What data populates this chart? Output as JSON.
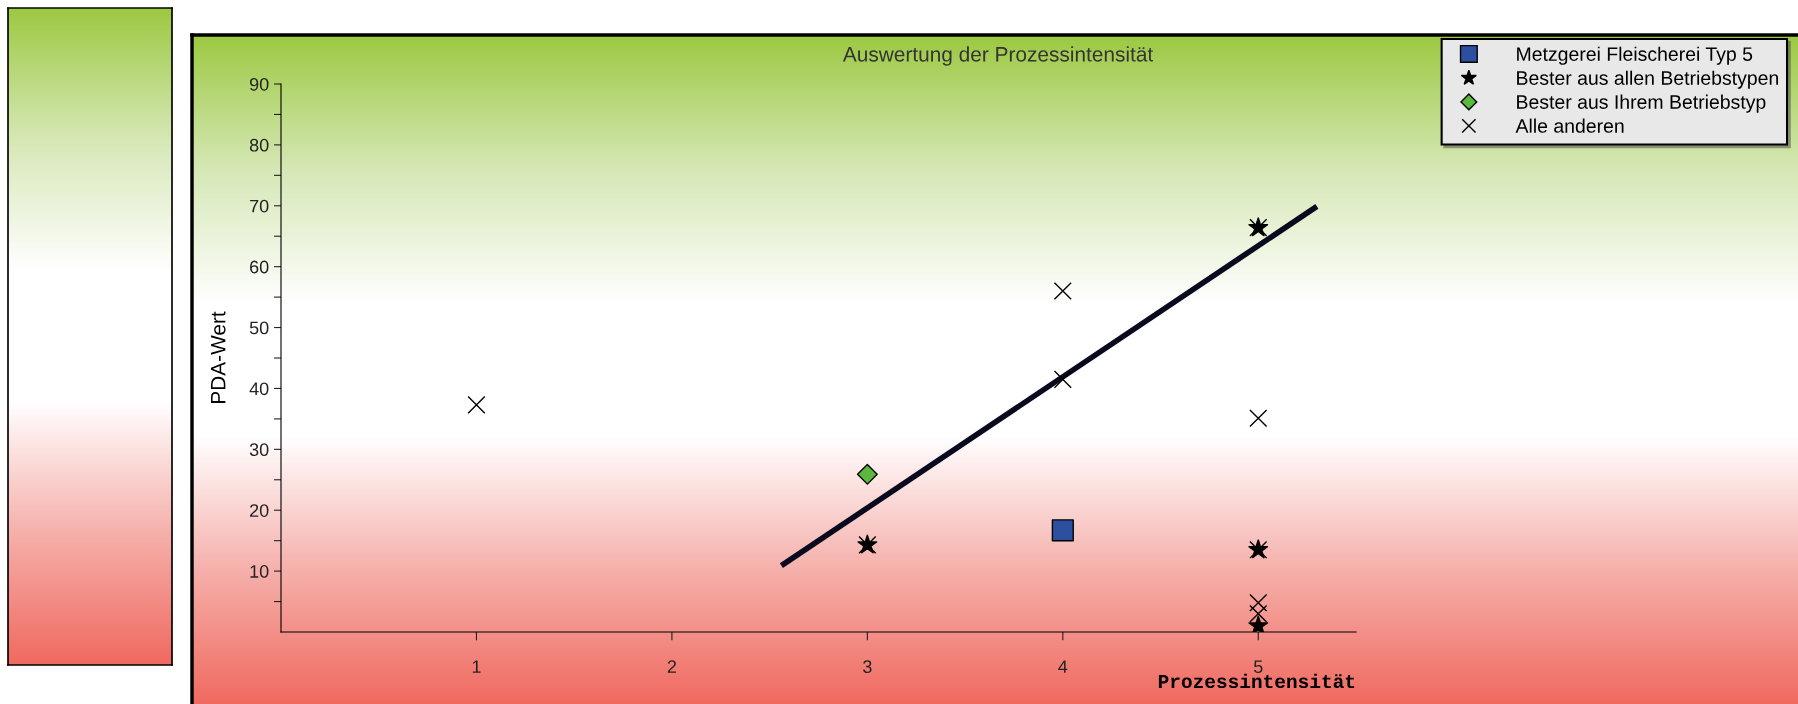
{
  "chart_data": {
    "type": "scatter",
    "title": "Auswertung der Prozessintensität",
    "xlabel": "Prozessintensität",
    "ylabel": "PDA-Wert",
    "xlim": [
      0,
      5.5
    ],
    "xticks": [
      1,
      2,
      3,
      4,
      5
    ],
    "ylim": [
      0,
      90
    ],
    "yticks": [
      {
        "value": 5,
        "label": null
      },
      10,
      {
        "value": 15,
        "label": null
      },
      20,
      {
        "value": 25,
        "label": null
      },
      30,
      {
        "value": 35,
        "label": null
      },
      40,
      {
        "value": 45,
        "label": null
      },
      50,
      {
        "value": 55,
        "label": null
      },
      60,
      {
        "value": 65,
        "label": null
      },
      70,
      {
        "value": 75,
        "label": null
      },
      80,
      {
        "value": 85,
        "label": null
      },
      90
    ],
    "grid": false,
    "legend": "top right",
    "series": [
      {
        "name": "Metzgerei Fleischerei Typ 5",
        "type": "scatter",
        "marker": "square",
        "color": "#2d4fa0",
        "x": [
          4
        ],
        "values": [
          16.7
        ]
      },
      {
        "name": "Bester aus allen Betriebstypen",
        "type": "scatter",
        "marker": "star",
        "color": "#000000",
        "x": [
          5,
          3,
          5,
          5
        ],
        "values": [
          66.4,
          14.3,
          13.5,
          1
        ]
      },
      {
        "name": "Bester aus Ihrem Betriebstyp",
        "type": "scatter",
        "marker": "diamond",
        "color": "#5cb83c",
        "x": [
          3
        ],
        "values": [
          25.9
        ]
      },
      {
        "name": "Alle anderen",
        "type": "scatter",
        "marker": "cross",
        "color": "#000000",
        "x": [
          1,
          3,
          4,
          4,
          5,
          5,
          5,
          5,
          5
        ],
        "values": [
          37.3,
          14.3,
          56.0,
          41.5,
          66.4,
          35.1,
          13.5,
          4.8,
          3.0
        ]
      },
      {
        "type": "line",
        "marker": "none",
        "line_style": "solid",
        "color": "#0a0a1e",
        "x": [
          2.56,
          5.3
        ],
        "values": [
          10.9,
          69.9
        ]
      }
    ]
  }
}
